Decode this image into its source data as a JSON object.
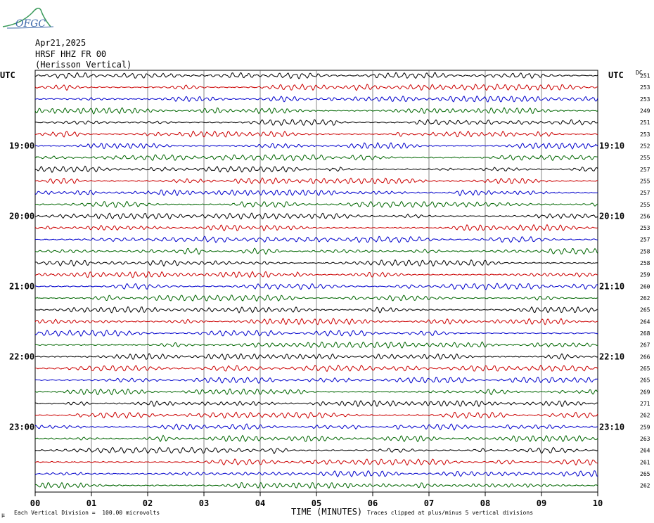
{
  "logo": {
    "name": "ofgc-logo",
    "text": "OFGC"
  },
  "header": {
    "date": "Apr21,2025",
    "station": "HRSF HHZ FR 00",
    "location": "(Herisson Vertical)"
  },
  "left_axis_title": "UTC",
  "right_axis_title": "UTC",
  "dc_header": "DC",
  "footer": {
    "division_note": "Each Vertical Division =  100.00 microvolts",
    "clip_note": "Traces clipped at plus/minus 5 vertical divisions",
    "small_mark": "μ"
  },
  "colors": {
    "black": "#000000",
    "red": "#cc0000",
    "blue": "#0000cc",
    "green": "#006600",
    "grid": "#000000"
  },
  "chart_data": {
    "type": "line",
    "xlabel": "TIME (MINUTES)",
    "x_ticks": [
      "00",
      "01",
      "02",
      "03",
      "04",
      "05",
      "06",
      "07",
      "08",
      "09",
      "10"
    ],
    "xlim": [
      0,
      10
    ],
    "trace_color_cycle": [
      "black",
      "red",
      "blue",
      "green"
    ],
    "trace_count": 36,
    "left_time_labels": [
      {
        "trace_index": 6,
        "label": "19:00"
      },
      {
        "trace_index": 12,
        "label": "20:00"
      },
      {
        "trace_index": 18,
        "label": "21:00"
      },
      {
        "trace_index": 24,
        "label": "22:00"
      },
      {
        "trace_index": 30,
        "label": "23:00"
      }
    ],
    "right_time_labels": [
      {
        "trace_index": 6,
        "label": "19:10"
      },
      {
        "trace_index": 12,
        "label": "20:10"
      },
      {
        "trace_index": 18,
        "label": "21:10"
      },
      {
        "trace_index": 24,
        "label": "22:10"
      },
      {
        "trace_index": 30,
        "label": "23:10"
      }
    ],
    "dc_offsets": [
      251,
      253,
      253,
      249,
      251,
      253,
      252,
      255,
      257,
      255,
      257,
      255,
      256,
      253,
      257,
      258,
      258,
      259,
      260,
      262,
      265,
      264,
      268,
      267,
      266,
      265,
      265,
      269,
      271,
      262,
      259,
      263,
      264,
      261,
      265,
      262
    ]
  }
}
